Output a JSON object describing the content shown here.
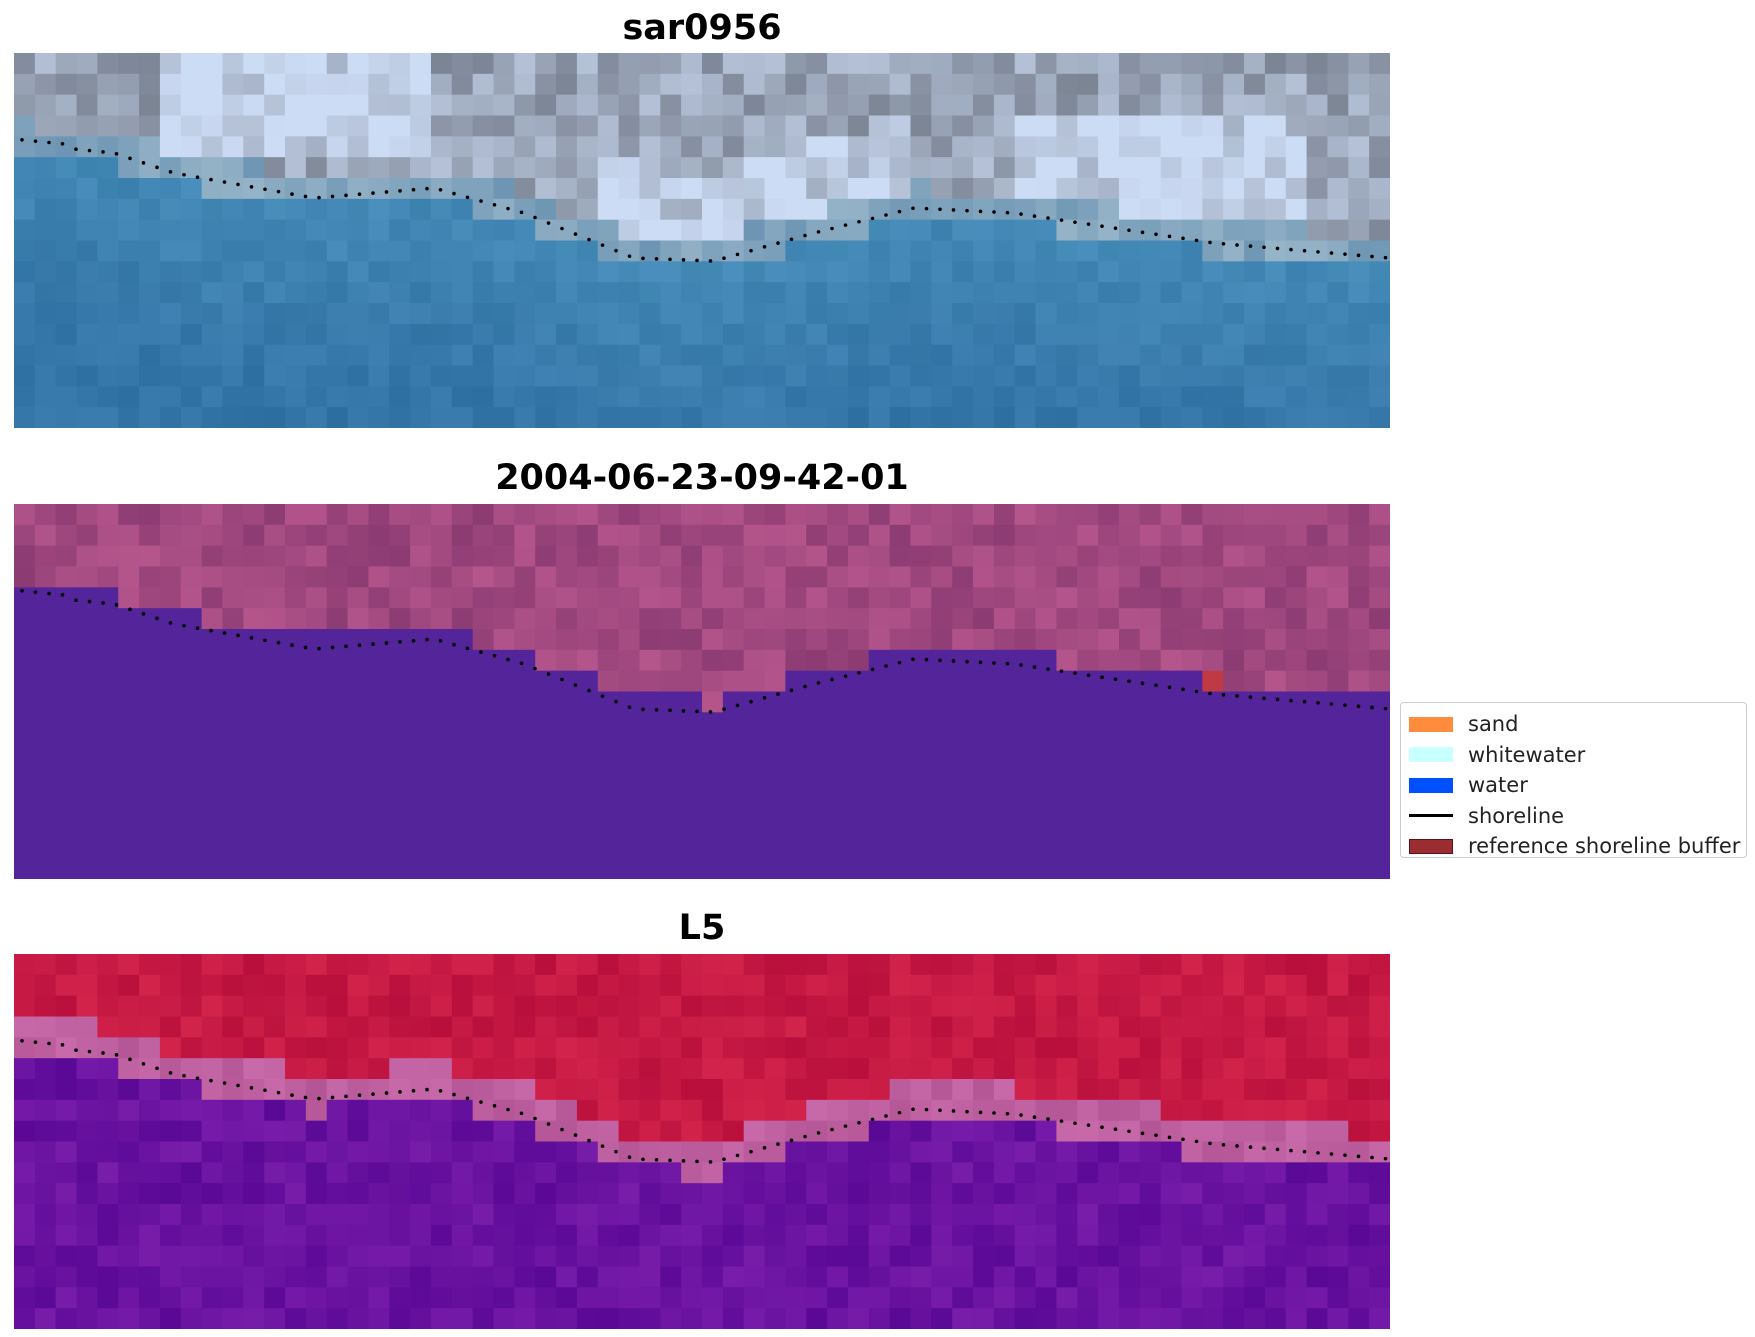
{
  "panels": [
    {
      "title": "sar0956",
      "kind": "rgb-image"
    },
    {
      "title": "2004-06-23-09-42-01",
      "kind": "classification"
    },
    {
      "title": "L5",
      "kind": "index-image"
    }
  ],
  "legend": {
    "items": [
      {
        "label": "sand",
        "type": "patch",
        "color": "#ff8c3c"
      },
      {
        "label": "whitewater",
        "type": "patch",
        "color": "#c8ffff"
      },
      {
        "label": "water",
        "type": "patch",
        "color": "#0050ff"
      },
      {
        "label": "shoreline",
        "type": "line",
        "color": "#000000"
      },
      {
        "label": "reference shoreline buffer",
        "type": "patch",
        "color": "#9b2c32"
      }
    ]
  },
  "colors": {
    "classification_water": "#53249a",
    "classification_land": "#9a4a80",
    "classification_buffer": "#c03a46",
    "index_land": "#c01845",
    "index_water": "#5c0a9c",
    "index_edge": "#b45a9e",
    "shoreline_dots": "#000000"
  }
}
